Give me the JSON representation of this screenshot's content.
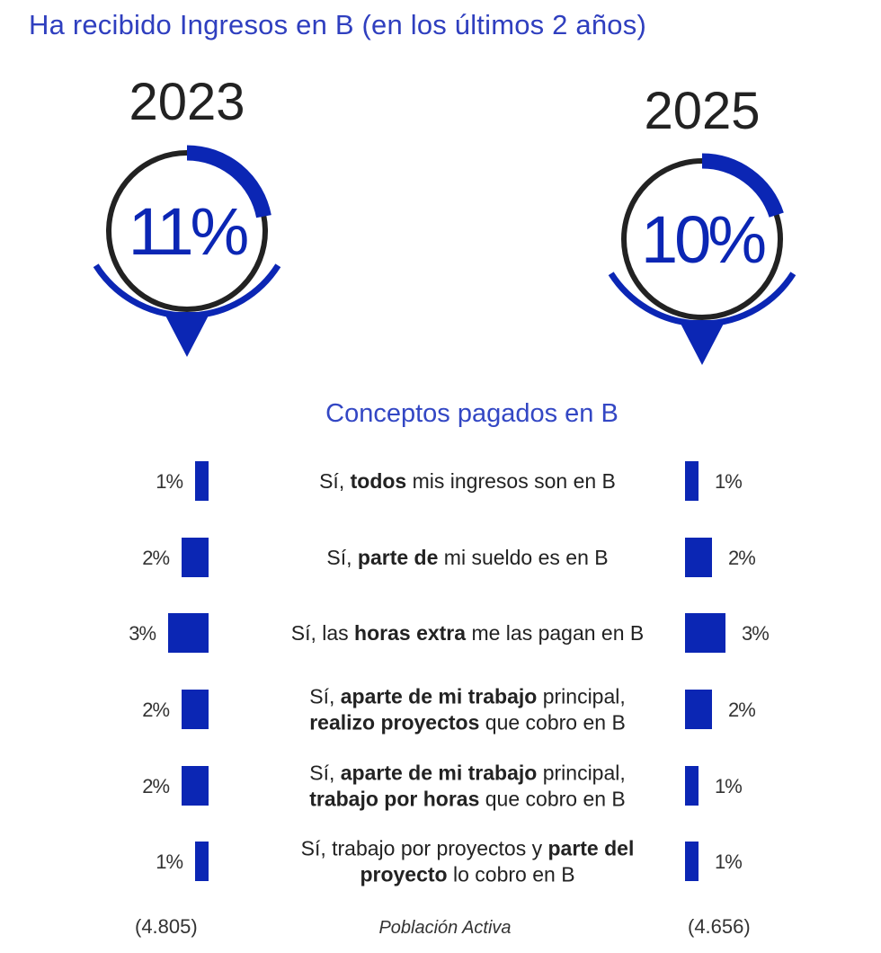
{
  "title": "Ha recibido Ingresos en B (en los últimos 2 años)",
  "subtitle": "Conceptos pagados en B",
  "colors": {
    "accent": "#0b26b4",
    "ring": "#222222",
    "text": "#222222"
  },
  "gauges": [
    {
      "year": "2023",
      "value": 11,
      "label": "11%"
    },
    {
      "year": "2025",
      "value": 10,
      "label": "10%"
    }
  ],
  "chart_data": {
    "type": "bar",
    "title": "Conceptos pagados en B",
    "categories": [
      [
        {
          "t": "Sí, ",
          "b": false
        },
        {
          "t": "todos",
          "b": true
        },
        {
          "t": " mis ingresos son en B",
          "b": false
        }
      ],
      [
        {
          "t": "Sí, ",
          "b": false
        },
        {
          "t": "parte de",
          "b": true
        },
        {
          "t": " mi sueldo es en B",
          "b": false
        }
      ],
      [
        {
          "t": "Sí, las ",
          "b": false
        },
        {
          "t": "horas extra",
          "b": true
        },
        {
          "t": " me las pagan en B",
          "b": false
        }
      ],
      [
        {
          "t": "Sí, ",
          "b": false
        },
        {
          "t": "aparte de mi trabajo",
          "b": true
        },
        {
          "t": " principal,",
          "b": false
        },
        {
          "t": "\n",
          "b": false
        },
        {
          "t": "realizo proyectos",
          "b": true
        },
        {
          "t": " que cobro en B",
          "b": false
        }
      ],
      [
        {
          "t": "Sí, ",
          "b": false
        },
        {
          "t": "aparte de mi trabajo",
          "b": true
        },
        {
          "t": " principal,",
          "b": false
        },
        {
          "t": "\n",
          "b": false
        },
        {
          "t": "trabajo por horas",
          "b": true
        },
        {
          "t": " que cobro en B",
          "b": false
        }
      ],
      [
        {
          "t": "Sí, trabajo por proyectos y ",
          "b": false
        },
        {
          "t": "parte del",
          "b": true
        },
        {
          "t": "\n",
          "b": false
        },
        {
          "t": "proyecto",
          "b": true
        },
        {
          "t": " lo cobro en B",
          "b": false
        }
      ]
    ],
    "series": [
      {
        "name": "2023",
        "values": [
          1,
          2,
          3,
          2,
          2,
          1
        ],
        "labels": [
          "1%",
          "2%",
          "3%",
          "2%",
          "2%",
          "1%"
        ]
      },
      {
        "name": "2025",
        "values": [
          1,
          2,
          3,
          2,
          1,
          1
        ],
        "labels": [
          "1%",
          "2%",
          "3%",
          "2%",
          "1%",
          "1%"
        ]
      }
    ]
  },
  "footer": {
    "left": "(4.805)",
    "middle": "Población Activa",
    "right": "(4.656)"
  }
}
